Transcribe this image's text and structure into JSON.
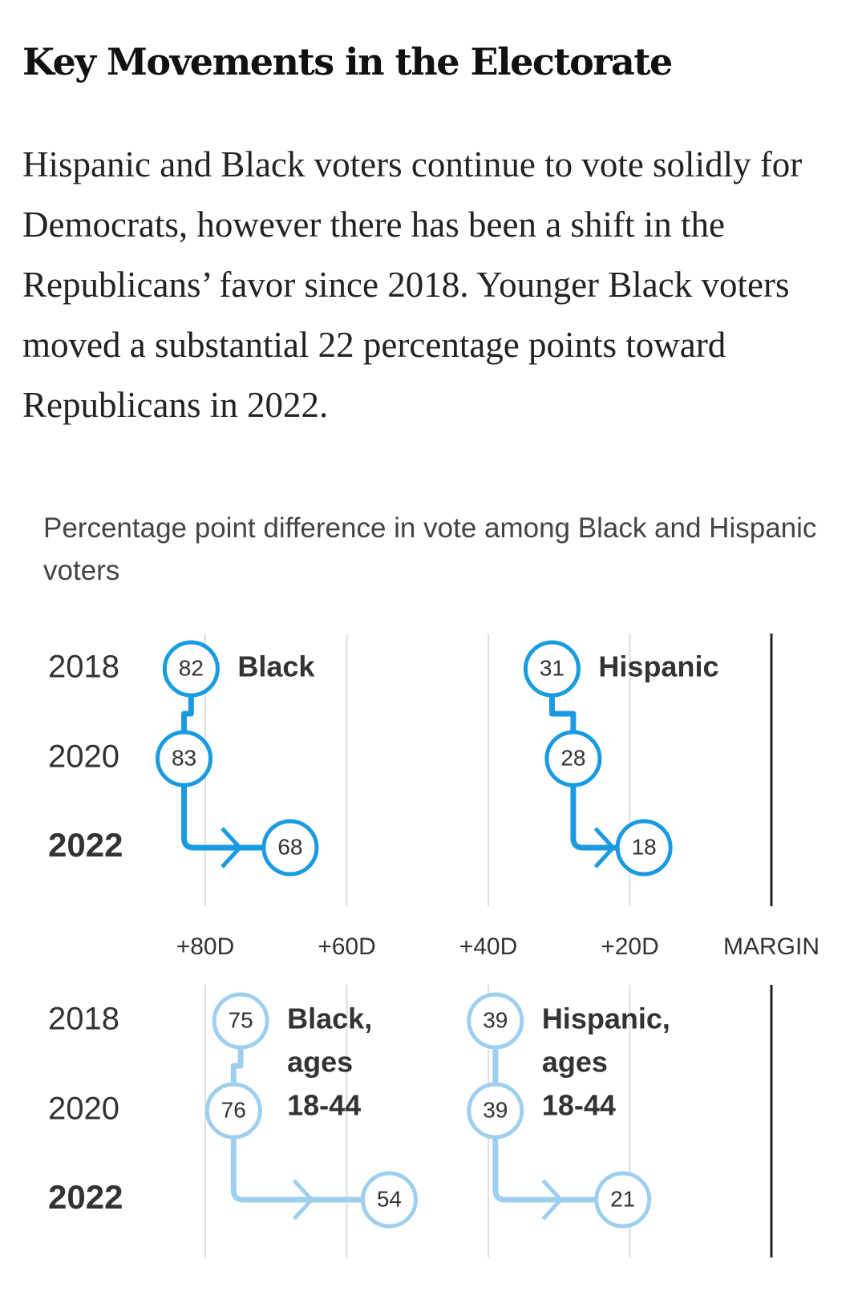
{
  "headline": "Key Movements in the Electorate",
  "dek": "Hispanic and Black voters continue to vote solidly for Democrats, however there has been a shift in the Republicans’ favor since 2018. Younger Black voters moved a substantial 22 percentage points toward Republicans in 2022.",
  "colors": {
    "dark_series": "#1a9ae0",
    "light_series": "#9fcfee",
    "gridline": "#dddddd",
    "zero_line": "#222222"
  },
  "chart_data": {
    "type": "line",
    "title": "Percentage point difference in vote among Black and Hispanic voters",
    "x_axis": {
      "label": "MARGIN",
      "tick_values": [
        80,
        60,
        40,
        20
      ],
      "tick_labels": [
        "+80D",
        "+60D",
        "+40D",
        "+20D"
      ],
      "reversed": true,
      "range": [
        88,
        0
      ]
    },
    "years": [
      "2018",
      "2020",
      "2022"
    ],
    "panels": [
      {
        "series": [
          {
            "name": "Black",
            "shade": "dark",
            "values": [
              82,
              83,
              68
            ]
          },
          {
            "name": "Hispanic",
            "shade": "dark",
            "values": [
              31,
              28,
              18
            ]
          }
        ]
      },
      {
        "series": [
          {
            "name": "Black, ages 18-44",
            "label_lines": [
              "Black,",
              "ages",
              "18-44"
            ],
            "shade": "light",
            "values": [
              75,
              76,
              54
            ]
          },
          {
            "name": "Hispanic, ages 18-44",
            "label_lines": [
              "Hispanic,",
              "ages",
              "18-44"
            ],
            "shade": "light",
            "values": [
              39,
              39,
              21
            ]
          }
        ]
      }
    ],
    "grid": true
  }
}
